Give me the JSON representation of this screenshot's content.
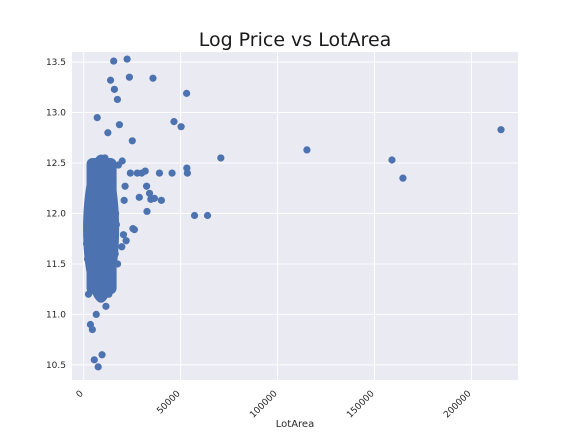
{
  "chart_data": {
    "type": "scatter",
    "title": "Log Price vs LotArea",
    "xlabel": "LotArea",
    "ylabel": "",
    "xlim": [
      -6000,
      224000
    ],
    "ylim": [
      10.35,
      13.6
    ],
    "xticks": [
      0,
      50000,
      100000,
      150000,
      200000
    ],
    "xtick_labels": [
      "0",
      "50000",
      "100000",
      "150000",
      "200000"
    ],
    "yticks": [
      10.5,
      11.0,
      11.5,
      12.0,
      12.5,
      13.0,
      13.5
    ],
    "ytick_labels": [
      "10.5",
      "11.0",
      "11.5",
      "12.0",
      "12.5",
      "13.0",
      "13.5"
    ],
    "grid": true,
    "legend": "none",
    "colors": {
      "background": "#eaeaf2",
      "grid": "#ffffff",
      "marker": "#4c72b0"
    },
    "series": [
      {
        "points": [
          [
            215245,
            12.83
          ],
          [
            164660,
            12.35
          ],
          [
            159000,
            12.53
          ],
          [
            115149,
            12.63
          ],
          [
            70761,
            12.55
          ],
          [
            63887,
            11.98
          ],
          [
            57200,
            11.98
          ],
          [
            53504,
            12.4
          ],
          [
            53227,
            12.45
          ],
          [
            53107,
            13.19
          ],
          [
            50271,
            12.86
          ],
          [
            46589,
            12.91
          ],
          [
            45600,
            12.4
          ],
          [
            40094,
            12.13
          ],
          [
            39104,
            12.4
          ],
          [
            36500,
            12.15
          ],
          [
            35760,
            13.34
          ],
          [
            34650,
            12.14
          ],
          [
            33983,
            12.2
          ],
          [
            32668,
            12.02
          ],
          [
            32463,
            12.27
          ],
          [
            31770,
            12.42
          ],
          [
            29959,
            12.4
          ],
          [
            28698,
            12.16
          ],
          [
            27650,
            12.4
          ],
          [
            26178,
            11.84
          ],
          [
            25419,
            11.85
          ],
          [
            25095,
            12.72
          ],
          [
            24090,
            12.4
          ],
          [
            23595,
            13.35
          ],
          [
            22420,
            13.53
          ],
          [
            21930,
            11.73
          ],
          [
            21384,
            12.27
          ],
          [
            20896,
            12.13
          ],
          [
            20544,
            11.79
          ],
          [
            19900,
            12.52
          ],
          [
            19690,
            11.67
          ],
          [
            18450,
            12.88
          ],
          [
            17920,
            12.48
          ],
          [
            17500,
            11.5
          ],
          [
            17423,
            13.13
          ],
          [
            16905,
            11.89
          ],
          [
            16500,
            12.0
          ],
          [
            16269,
            11.6
          ],
          [
            15863,
            13.23
          ],
          [
            15500,
            13.51
          ],
          [
            14860,
            11.56
          ],
          [
            14300,
            11.35
          ],
          [
            13891,
            13.32
          ],
          [
            13500,
            12.34
          ],
          [
            13000,
            11.2
          ],
          [
            12500,
            12.8
          ],
          [
            12000,
            11.7
          ],
          [
            11500,
            11.08
          ],
          [
            11000,
            12.55
          ],
          [
            10500,
            11.45
          ],
          [
            10000,
            12.1
          ],
          [
            9500,
            10.6
          ],
          [
            9000,
            11.9
          ],
          [
            8500,
            11.25
          ],
          [
            8000,
            12.4
          ],
          [
            7500,
            10.48
          ],
          [
            7000,
            12.95
          ],
          [
            6500,
            11.0
          ],
          [
            6000,
            12.2
          ],
          [
            5500,
            10.55
          ],
          [
            5000,
            11.6
          ],
          [
            4500,
            10.85
          ],
          [
            4000,
            11.35
          ],
          [
            3500,
            10.9
          ],
          [
            3000,
            11.75
          ],
          [
            2500,
            11.2
          ],
          [
            2000,
            11.55
          ],
          [
            1500,
            11.7
          ]
        ]
      }
    ]
  }
}
